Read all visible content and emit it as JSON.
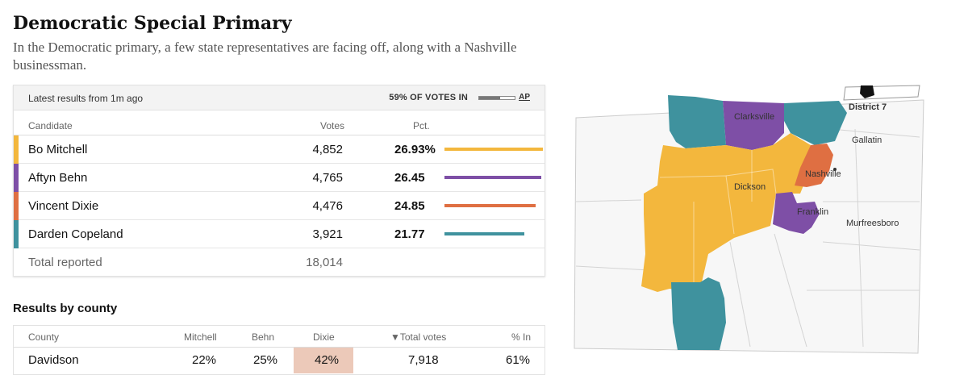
{
  "title": "Democratic Special Primary",
  "subtitle": "In the Democratic primary, a few state representatives are facing off, along with a Nashville businessman.",
  "results": {
    "latest": "Latest results from 1m ago",
    "votes_in_label": "59% OF VOTES IN",
    "reporting_fraction": 0.59,
    "source": "AP",
    "columns": {
      "candidate": "Candidate",
      "votes": "Votes",
      "pct": "Pct."
    },
    "candidates": [
      {
        "name": "Bo Mitchell",
        "votes": "4,852",
        "pct": "26.93%",
        "pct_value": 26.93,
        "color": "#f3b73d"
      },
      {
        "name": "Aftyn Behn",
        "votes": "4,765",
        "pct": "26.45",
        "pct_value": 26.45,
        "color": "#7e4fa6"
      },
      {
        "name": "Vincent Dixie",
        "votes": "4,476",
        "pct": "24.85",
        "pct_value": 24.85,
        "color": "#df6f42"
      },
      {
        "name": "Darden Copeland",
        "votes": "3,921",
        "pct": "21.77",
        "pct_value": 21.77,
        "color": "#3f929e"
      }
    ],
    "total": {
      "label": "Total reported",
      "votes": "18,014"
    }
  },
  "county": {
    "heading": "Results by county",
    "columns": {
      "county": "County",
      "mitchell": "Mitchell",
      "behn": "Behn",
      "dixie": "Dixie",
      "total": "▼Total votes",
      "pct_in": "% In"
    },
    "rows": [
      {
        "county": "Davidson",
        "mitchell": "22%",
        "behn": "25%",
        "dixie": "42%",
        "total": "7,918",
        "pct_in": "61%",
        "leader_color": "#ecc9b9"
      }
    ]
  },
  "map": {
    "labels": {
      "district": "District 7",
      "clarksville": "Clarksville",
      "gallatin": "Gallatin",
      "nashville": "Nashville",
      "dickson": "Dickson",
      "franklin": "Franklin",
      "murfreesboro": "Murfreesboro"
    },
    "colors": {
      "mitchell": "#f3b73d",
      "behn": "#7e4fa6",
      "dixie": "#df6f42",
      "copeland": "#3f929e",
      "background": "#f7f7f7",
      "border": "#cccccc"
    }
  }
}
